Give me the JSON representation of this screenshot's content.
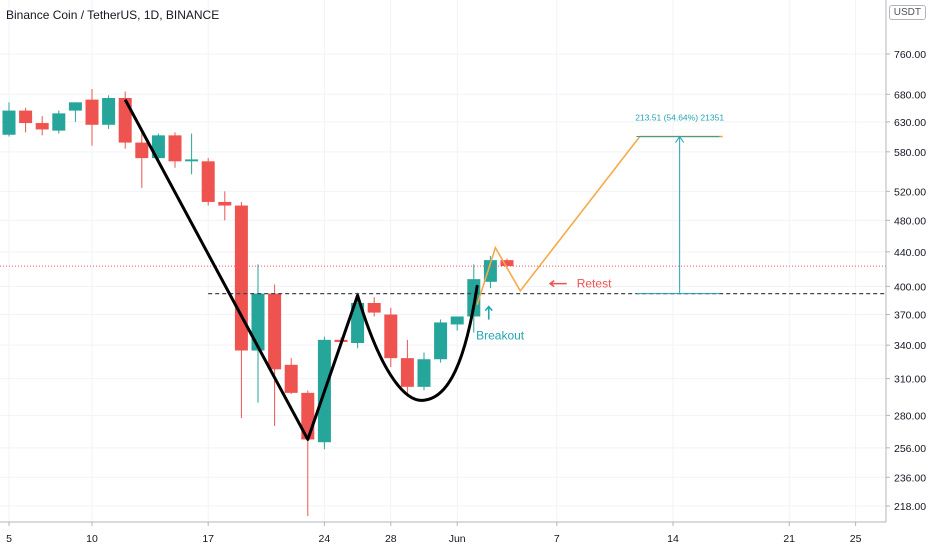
{
  "header": {
    "title": "Binance Coin / TetherUS, 1D, BINANCE",
    "currency": "USDT"
  },
  "chart_data": {
    "type": "candlestick",
    "title": "Binance Coin / TetherUS, 1D, BINANCE",
    "y_scale": "log",
    "ylim": [
      205,
      900
    ],
    "y_ticks": [
      218,
      236,
      256,
      280,
      310,
      340,
      370,
      400,
      440,
      480,
      520,
      580,
      630,
      680,
      760
    ],
    "y_tick_labels": [
      "218.00",
      "236.00",
      "256.00",
      "280.00",
      "310.00",
      "340.00",
      "370.00",
      "400.00",
      "440.00",
      "480.00",
      "520.00",
      "580.00",
      "630.00",
      "680.00",
      "760.00"
    ],
    "x_ticks": [
      {
        "day": 0,
        "label": "5"
      },
      {
        "day": 5,
        "label": "10"
      },
      {
        "day": 12,
        "label": "17"
      },
      {
        "day": 19,
        "label": "24"
      },
      {
        "day": 23,
        "label": "28"
      },
      {
        "day": 27,
        "label": "Jun"
      },
      {
        "day": 33,
        "label": "7"
      },
      {
        "day": 40,
        "label": "14"
      },
      {
        "day": 47,
        "label": "21"
      },
      {
        "day": 51,
        "label": "25"
      }
    ],
    "candles": [
      {
        "o": 608,
        "h": 665,
        "l": 605,
        "c": 650
      },
      {
        "o": 650,
        "h": 655,
        "l": 612,
        "c": 628
      },
      {
        "o": 628,
        "h": 640,
        "l": 607,
        "c": 617
      },
      {
        "o": 615,
        "h": 650,
        "l": 610,
        "c": 645
      },
      {
        "o": 650,
        "h": 665,
        "l": 630,
        "c": 665
      },
      {
        "o": 670,
        "h": 690,
        "l": 590,
        "c": 625
      },
      {
        "o": 625,
        "h": 678,
        "l": 618,
        "c": 673
      },
      {
        "o": 673,
        "h": 685,
        "l": 585,
        "c": 595
      },
      {
        "o": 595,
        "h": 612,
        "l": 525,
        "c": 570
      },
      {
        "o": 570,
        "h": 610,
        "l": 565,
        "c": 607
      },
      {
        "o": 607,
        "h": 612,
        "l": 555,
        "c": 565
      },
      {
        "o": 565,
        "h": 610,
        "l": 545,
        "c": 568
      },
      {
        "o": 565,
        "h": 570,
        "l": 500,
        "c": 505
      },
      {
        "o": 505,
        "h": 520,
        "l": 480,
        "c": 500
      },
      {
        "o": 500,
        "h": 505,
        "l": 278,
        "c": 335
      },
      {
        "o": 335,
        "h": 425,
        "l": 290,
        "c": 392
      },
      {
        "o": 392,
        "h": 402,
        "l": 272,
        "c": 318
      },
      {
        "o": 322,
        "h": 328,
        "l": 297,
        "c": 298
      },
      {
        "o": 298,
        "h": 300,
        "l": 212,
        "c": 262
      },
      {
        "o": 260,
        "h": 348,
        "l": 255,
        "c": 345
      },
      {
        "o": 345,
        "h": 347,
        "l": 340,
        "c": 343
      },
      {
        "o": 342,
        "h": 393,
        "l": 337,
        "c": 382
      },
      {
        "o": 382,
        "h": 388,
        "l": 368,
        "c": 372
      },
      {
        "o": 370,
        "h": 377,
        "l": 320,
        "c": 328
      },
      {
        "o": 328,
        "h": 345,
        "l": 298,
        "c": 303
      },
      {
        "o": 303,
        "h": 333,
        "l": 300,
        "c": 327
      },
      {
        "o": 327,
        "h": 365,
        "l": 324,
        "c": 362
      },
      {
        "o": 360,
        "h": 368,
        "l": 354,
        "c": 368
      },
      {
        "o": 368,
        "h": 425,
        "l": 352,
        "c": 408
      },
      {
        "o": 405,
        "h": 435,
        "l": 398,
        "c": 430
      },
      {
        "o": 430,
        "h": 432,
        "l": 420,
        "c": 423
      }
    ],
    "price_line": 423,
    "support_level": 392,
    "measure": {
      "label": "213.51 (54.64%) 21351",
      "from": 392,
      "to": 605
    },
    "annotations": {
      "breakout": "Breakout",
      "retest": "Retest"
    },
    "colors": {
      "up": "#26a69a",
      "down": "#ef5350",
      "projection": "#f7a948",
      "measure": "#22a6b3",
      "price_line": "#ef5350",
      "pattern": "#000000"
    }
  }
}
